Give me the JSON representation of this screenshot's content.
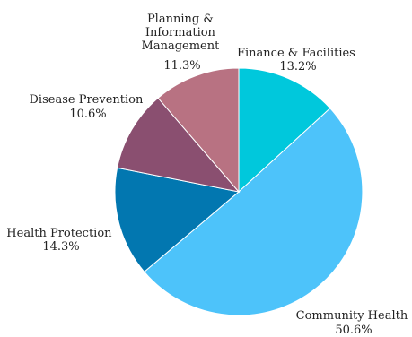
{
  "chart_data": {
    "type": "pie",
    "title": "",
    "start_angle_deg": 0,
    "direction": "clockwise",
    "slices": [
      {
        "label": "Finance & Facilities",
        "percent_label": "13.2%",
        "value": 13.2,
        "color": "#00c8dc"
      },
      {
        "label": "Community Health",
        "percent_label": "50.6%",
        "value": 50.6,
        "color": "#4dc3fa"
      },
      {
        "label": "Health Protection",
        "percent_label": "14.3%",
        "value": 14.3,
        "color": "#0277b0"
      },
      {
        "label": "Disease Prevention",
        "percent_label": "10.6%",
        "value": 10.6,
        "color": "#8a4f70"
      },
      {
        "label": "Planning & Information Management",
        "percent_label": "11.3%",
        "value": 11.3,
        "color": "#b87282"
      }
    ]
  }
}
